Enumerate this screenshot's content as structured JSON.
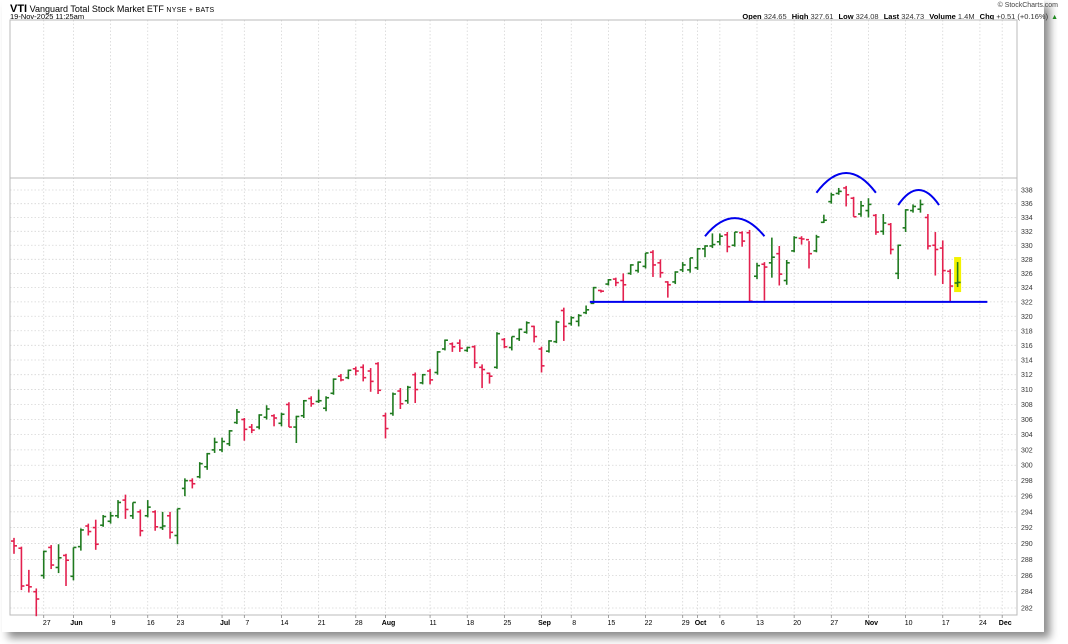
{
  "header": {
    "symbol": "VTI",
    "name": "Vanguard Total Stock Market ETF",
    "exchange": "NYSE + BATS",
    "datetime": "19-Nov-2025 11:25am",
    "credit": "© StockCharts.com",
    "open_label": "Open",
    "open": "324.65",
    "high_label": "High",
    "high": "327.61",
    "low_label": "Low",
    "low": "324.08",
    "last_label": "Last",
    "last": "324.73",
    "volume_label": "Volume",
    "volume": "1.4M",
    "chg_label": "Chg",
    "chg": "+0.51 (+0.16%)",
    "chg_arrow": "▲"
  },
  "chart_data": {
    "type": "ohlc",
    "title": "VTI Vanguard Total Stock Market ETF",
    "yscale": "log",
    "ylim": [
      282,
      338
    ],
    "y_ticks": [
      "282",
      "284",
      "286",
      "288",
      "290",
      "292",
      "294",
      "296",
      "298",
      "300",
      "302",
      "304",
      "306",
      "308",
      "310",
      "312",
      "314",
      "316",
      "318",
      "320",
      "322",
      "324",
      "326",
      "328",
      "330",
      "332",
      "334",
      "336",
      "338"
    ],
    "grid": true,
    "colors": {
      "up": "#1f7a1f",
      "down": "#e3204e",
      "annotation": "#0000ee",
      "highlight": "#f2f200"
    },
    "fields": [
      "date",
      "open",
      "high",
      "low",
      "close"
    ],
    "bars": [
      [
        "2025-05-20",
        290.3,
        290.7,
        288.7,
        289.7
      ],
      [
        "2025-05-21",
        289.4,
        289.6,
        284.2,
        284.7
      ],
      [
        "2025-05-22",
        284.8,
        286.7,
        283.9,
        284.6
      ],
      [
        "2025-05-23",
        284.0,
        284.4,
        281.0,
        283.1
      ],
      [
        "2025-05-27",
        286.0,
        289.1,
        285.6,
        289.0
      ],
      [
        "2025-05-28",
        289.5,
        289.8,
        286.8,
        287.3
      ],
      [
        "2025-05-29",
        287.0,
        289.9,
        286.3,
        288.2
      ],
      [
        "2025-05-30",
        288.5,
        288.7,
        284.7,
        287.9
      ],
      [
        "2025-06-02",
        285.9,
        289.5,
        285.4,
        289.5
      ],
      [
        "2025-06-03",
        289.6,
        291.9,
        289.1,
        291.7
      ],
      [
        "2025-06-04",
        292.2,
        292.5,
        291.0,
        291.5
      ],
      [
        "2025-06-05",
        292.0,
        293.0,
        289.2,
        289.9
      ],
      [
        "2025-06-06",
        292.3,
        293.6,
        292.1,
        293.4
      ],
      [
        "2025-06-09",
        292.8,
        294.0,
        292.5,
        293.5
      ],
      [
        "2025-06-10",
        293.5,
        295.5,
        293.2,
        295.2
      ],
      [
        "2025-06-11",
        295.5,
        296.2,
        293.1,
        294.3
      ],
      [
        "2025-06-12",
        293.5,
        295.2,
        293.1,
        295.2
      ],
      [
        "2025-06-13",
        294.0,
        294.3,
        290.9,
        291.6
      ],
      [
        "2025-06-16",
        293.5,
        295.5,
        293.3,
        294.6
      ],
      [
        "2025-06-17",
        294.0,
        294.2,
        291.6,
        292.1
      ],
      [
        "2025-06-18",
        292.0,
        294.0,
        291.7,
        292.2
      ],
      [
        "2025-06-20",
        293.5,
        294.0,
        290.6,
        291.4
      ],
      [
        "2025-06-23",
        291.0,
        294.4,
        289.9,
        294.4
      ],
      [
        "2025-06-24",
        297.0,
        298.3,
        296.0,
        298.0
      ],
      [
        "2025-06-25",
        298.0,
        298.3,
        297.0,
        297.6
      ],
      [
        "2025-06-26",
        298.5,
        300.4,
        298.3,
        300.2
      ],
      [
        "2025-06-27",
        299.8,
        301.6,
        299.4,
        301.5
      ],
      [
        "2025-06-30",
        302.0,
        303.6,
        301.6,
        303.0
      ],
      [
        "2025-07-01",
        302.0,
        303.6,
        301.7,
        303.1
      ],
      [
        "2025-07-02",
        302.8,
        304.6,
        302.5,
        304.5
      ],
      [
        "2025-07-03",
        305.6,
        307.4,
        305.4,
        307.0
      ],
      [
        "2025-07-07",
        306.0,
        306.2,
        303.2,
        304.7
      ],
      [
        "2025-07-08",
        305.0,
        305.4,
        304.2,
        304.6
      ],
      [
        "2025-07-09",
        305.0,
        306.7,
        304.7,
        306.6
      ],
      [
        "2025-07-10",
        306.3,
        307.9,
        306.0,
        307.4
      ],
      [
        "2025-07-11",
        306.5,
        306.7,
        305.1,
        306.2
      ],
      [
        "2025-07-14",
        305.5,
        306.9,
        305.1,
        306.7
      ],
      [
        "2025-07-15",
        308.0,
        308.3,
        305.0,
        305.0
      ],
      [
        "2025-07-16",
        305.0,
        306.5,
        302.9,
        306.4
      ],
      [
        "2025-07-17",
        306.5,
        308.6,
        306.2,
        308.5
      ],
      [
        "2025-07-18",
        308.8,
        309.1,
        307.7,
        308.1
      ],
      [
        "2025-07-21",
        308.4,
        310.0,
        308.2,
        308.5
      ],
      [
        "2025-07-22",
        307.5,
        309.1,
        307.1,
        308.9
      ],
      [
        "2025-07-23",
        309.5,
        311.5,
        309.3,
        311.4
      ],
      [
        "2025-07-24",
        311.8,
        312.1,
        311.1,
        311.3
      ],
      [
        "2025-07-25",
        311.6,
        312.7,
        311.4,
        312.6
      ],
      [
        "2025-07-28",
        312.8,
        313.1,
        311.9,
        312.5
      ],
      [
        "2025-07-29",
        313.0,
        313.4,
        311.1,
        311.6
      ],
      [
        "2025-07-30",
        312.5,
        312.9,
        309.7,
        311.1
      ],
      [
        "2025-07-31",
        313.5,
        313.7,
        309.4,
        309.9
      ],
      [
        "2025-08-01",
        306.5,
        306.9,
        303.5,
        304.8
      ],
      [
        "2025-08-04",
        306.8,
        309.6,
        306.5,
        309.4
      ],
      [
        "2025-08-05",
        309.8,
        310.2,
        307.4,
        308.1
      ],
      [
        "2025-08-06",
        308.5,
        310.5,
        308.1,
        310.3
      ],
      [
        "2025-08-07",
        312.0,
        312.3,
        308.2,
        310.0
      ],
      [
        "2025-08-08",
        310.9,
        312.1,
        310.7,
        312.0
      ],
      [
        "2025-08-11",
        312.5,
        312.8,
        310.7,
        311.3
      ],
      [
        "2025-08-12",
        312.3,
        315.2,
        312.0,
        315.1
      ],
      [
        "2025-08-13",
        315.5,
        316.8,
        315.3,
        316.7
      ],
      [
        "2025-08-14",
        316.2,
        316.4,
        315.1,
        315.8
      ],
      [
        "2025-08-15",
        316.3,
        316.8,
        315.1,
        315.6
      ],
      [
        "2025-08-18",
        315.3,
        315.8,
        315.1,
        315.7
      ],
      [
        "2025-08-19",
        315.8,
        316.0,
        312.9,
        313.6
      ],
      [
        "2025-08-20",
        313.0,
        313.4,
        310.2,
        312.7
      ],
      [
        "2025-08-21",
        312.2,
        312.3,
        310.8,
        311.8
      ],
      [
        "2025-08-22",
        313.0,
        317.8,
        312.8,
        317.6
      ],
      [
        "2025-08-25",
        316.8,
        317.0,
        315.6,
        315.8
      ],
      [
        "2025-08-26",
        315.7,
        317.2,
        315.3,
        317.2
      ],
      [
        "2025-08-27",
        316.9,
        318.3,
        316.6,
        318.2
      ],
      [
        "2025-08-28",
        317.8,
        319.3,
        317.6,
        319.1
      ],
      [
        "2025-08-29",
        318.6,
        318.7,
        316.4,
        317.2
      ],
      [
        "2025-09-02",
        315.5,
        315.8,
        312.3,
        313.2
      ],
      [
        "2025-09-03",
        315.2,
        316.7,
        315.0,
        316.6
      ],
      [
        "2025-09-04",
        316.5,
        319.4,
        316.3,
        319.2
      ],
      [
        "2025-09-05",
        320.8,
        321.2,
        316.6,
        318.6
      ],
      [
        "2025-09-08",
        319.0,
        320.0,
        318.7,
        319.8
      ],
      [
        "2025-09-09",
        319.3,
        320.3,
        318.6,
        320.1
      ],
      [
        "2025-09-10",
        320.5,
        321.5,
        320.3,
        320.9
      ],
      [
        "2025-09-11",
        321.8,
        324.1,
        321.7,
        324.0
      ],
      [
        "2025-09-12",
        323.6,
        323.7,
        323.3,
        323.5
      ],
      [
        "2025-09-15",
        324.5,
        325.2,
        324.3,
        325.1
      ],
      [
        "2025-09-16",
        325.2,
        325.4,
        324.2,
        324.7
      ],
      [
        "2025-09-17",
        325.0,
        326.0,
        321.9,
        324.4
      ],
      [
        "2025-09-18",
        326.0,
        327.3,
        325.8,
        327.2
      ],
      [
        "2025-09-19",
        326.4,
        327.7,
        326.1,
        327.6
      ],
      [
        "2025-09-22",
        327.0,
        328.9,
        326.7,
        328.9
      ],
      [
        "2025-09-23",
        329.0,
        329.3,
        325.5,
        327.2
      ],
      [
        "2025-09-24",
        327.5,
        328.0,
        325.4,
        326.1
      ],
      [
        "2025-09-25",
        324.8,
        324.9,
        322.6,
        324.4
      ],
      [
        "2025-09-26",
        324.8,
        326.3,
        324.5,
        326.2
      ],
      [
        "2025-09-29",
        326.5,
        327.6,
        326.2,
        327.2
      ],
      [
        "2025-09-30",
        326.5,
        328.2,
        326.1,
        328.2
      ],
      [
        "2025-10-01",
        326.8,
        329.6,
        326.5,
        329.5
      ],
      [
        "2025-10-02",
        329.5,
        330.0,
        328.3,
        329.9
      ],
      [
        "2025-10-03",
        329.9,
        331.7,
        329.6,
        330.1
      ],
      [
        "2025-10-06",
        330.5,
        331.7,
        330.0,
        331.3
      ],
      [
        "2025-10-07",
        331.5,
        331.9,
        329.0,
        329.8
      ],
      [
        "2025-10-08",
        330.0,
        331.9,
        329.8,
        331.9
      ],
      [
        "2025-10-09",
        331.8,
        332.0,
        329.8,
        330.6
      ],
      [
        "2025-10-10",
        331.8,
        332.2,
        322.0,
        322.1
      ],
      [
        "2025-10-13",
        325.6,
        327.5,
        325.2,
        327.1
      ],
      [
        "2025-10-14",
        327.3,
        327.6,
        322.2,
        326.9
      ],
      [
        "2025-10-15",
        327.5,
        331.1,
        325.4,
        328.3
      ],
      [
        "2025-10-16",
        328.8,
        329.9,
        324.3,
        325.9
      ],
      [
        "2025-10-17",
        325.0,
        327.9,
        324.4,
        327.5
      ],
      [
        "2025-10-20",
        329.2,
        331.3,
        329.0,
        331.1
      ],
      [
        "2025-10-21",
        331.0,
        331.3,
        330.1,
        330.9
      ],
      [
        "2025-10-22",
        330.8,
        330.6,
        326.7,
        328.8
      ],
      [
        "2025-10-23",
        329.2,
        331.5,
        329.0,
        331.2
      ],
      [
        "2025-10-24",
        333.3,
        334.4,
        333.2,
        333.6
      ],
      [
        "2025-10-27",
        336.3,
        337.6,
        336.0,
        337.3
      ],
      [
        "2025-10-28",
        337.5,
        338.3,
        337.3,
        337.8
      ],
      [
        "2025-10-29",
        338.3,
        338.6,
        335.6,
        337.3
      ],
      [
        "2025-10-30",
        336.8,
        337.0,
        334.1,
        334.1
      ],
      [
        "2025-10-31",
        334.5,
        336.4,
        334.1,
        335.7
      ],
      [
        "2025-11-03",
        335.0,
        336.8,
        334.0,
        335.9
      ],
      [
        "2025-11-04",
        334.3,
        334.5,
        331.5,
        331.9
      ],
      [
        "2025-11-05",
        332.0,
        334.5,
        331.5,
        333.2
      ],
      [
        "2025-11-06",
        333.0,
        333.2,
        328.7,
        329.4
      ],
      [
        "2025-11-07",
        326.0,
        330.1,
        325.2,
        330.0
      ],
      [
        "2025-11-10",
        332.5,
        335.2,
        331.9,
        335.1
      ],
      [
        "2025-11-11",
        335.0,
        335.9,
        334.7,
        335.6
      ],
      [
        "2025-11-12",
        335.2,
        336.6,
        334.7,
        335.9
      ],
      [
        "2025-11-13",
        334.0,
        334.5,
        329.4,
        329.9
      ],
      [
        "2025-11-14",
        330.0,
        331.9,
        325.7,
        329.4
      ],
      [
        "2025-11-17",
        329.6,
        330.7,
        324.5,
        326.4
      ],
      [
        "2025-11-18",
        326.3,
        326.6,
        322.0,
        324.22
      ],
      [
        "2025-11-19",
        324.65,
        327.61,
        324.08,
        324.73
      ]
    ],
    "x_ticks": [
      {
        "label": "27",
        "index": 4,
        "month": false
      },
      {
        "label": "Jun",
        "index": 8,
        "month": true
      },
      {
        "label": "9",
        "index": 13,
        "month": false
      },
      {
        "label": "16",
        "index": 18,
        "month": false
      },
      {
        "label": "23",
        "index": 22,
        "month": false
      },
      {
        "label": "Jul",
        "index": 28,
        "month": true
      },
      {
        "label": "7",
        "index": 31,
        "month": false
      },
      {
        "label": "14",
        "index": 36,
        "month": false
      },
      {
        "label": "21",
        "index": 41,
        "month": false
      },
      {
        "label": "28",
        "index": 46,
        "month": false
      },
      {
        "label": "Aug",
        "index": 50,
        "month": true
      },
      {
        "label": "11",
        "index": 56,
        "month": false
      },
      {
        "label": "18",
        "index": 61,
        "month": false
      },
      {
        "label": "25",
        "index": 66,
        "month": false
      },
      {
        "label": "Sep",
        "index": 71,
        "month": true
      },
      {
        "label": "8",
        "index": 75,
        "month": false
      },
      {
        "label": "15",
        "index": 80,
        "month": false
      },
      {
        "label": "22",
        "index": 85,
        "month": false
      },
      {
        "label": "29",
        "index": 90,
        "month": false
      },
      {
        "label": "Oct",
        "index": 92,
        "month": true
      },
      {
        "label": "6",
        "index": 95,
        "month": false
      },
      {
        "label": "13",
        "index": 100,
        "month": false
      },
      {
        "label": "20",
        "index": 105,
        "month": false
      },
      {
        "label": "27",
        "index": 110,
        "month": false
      },
      {
        "label": "Nov",
        "index": 115,
        "month": true
      },
      {
        "label": "10",
        "index": 120,
        "month": false
      },
      {
        "label": "17",
        "index": 125,
        "month": false
      },
      {
        "label": "24",
        "index": 130,
        "month": false
      },
      {
        "label": "Dec",
        "index": 133,
        "month": true
      }
    ],
    "annotations": {
      "support_line": {
        "price": 322.0,
        "from_index": 77.5,
        "to_index": 131
      },
      "arcs": [
        {
          "from_index": 93,
          "to_index": 101,
          "base_price": 331.3,
          "peak_price": 333.9
        },
        {
          "from_index": 108,
          "to_index": 116,
          "base_price": 337.6,
          "peak_price": 340.5
        },
        {
          "from_index": 119,
          "to_index": 124.5,
          "base_price": 335.8,
          "peak_price": 338.0
        }
      ],
      "highlight_index": 127
    }
  }
}
